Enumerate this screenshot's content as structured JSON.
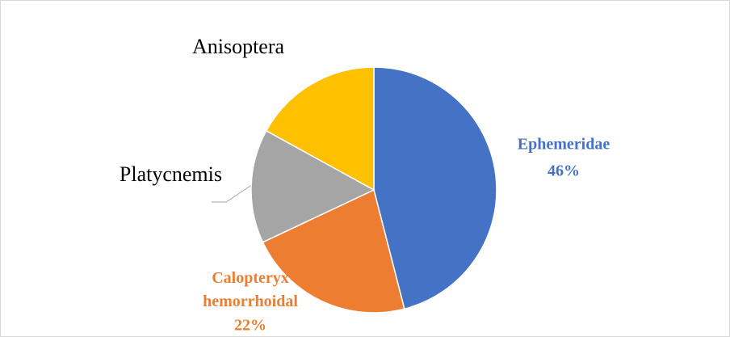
{
  "chart_data": {
    "type": "pie",
    "categories": [
      "Ephemeridae",
      "Calopteryx hemorrhoidal",
      "Platycnemis",
      "Anisoptera"
    ],
    "values": [
      46,
      22,
      15,
      17
    ],
    "value_labels": [
      "46%",
      "22%",
      null,
      null
    ],
    "colors": [
      "#4472c4",
      "#ed7d31",
      "#a5a5a5",
      "#ffc000"
    ]
  }
}
